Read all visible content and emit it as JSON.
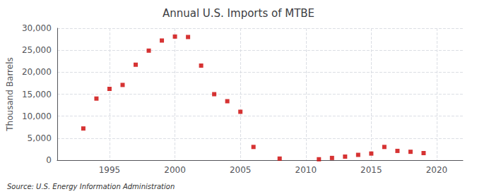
{
  "chart_data": {
    "type": "scatter",
    "title": "Annual U.S. Imports of MTBE",
    "ylabel": "Thousand Barrels",
    "annotation": "Source: U.S. Energy Information Administration",
    "x": [
      1993,
      1994,
      1995,
      1996,
      1997,
      1998,
      1999,
      2000,
      2001,
      2002,
      2003,
      2004,
      2005,
      2006,
      2008,
      2011,
      2012,
      2013,
      2014,
      2015,
      2016,
      2017,
      2018,
      2019
    ],
    "values": [
      7200,
      14000,
      16200,
      17100,
      21700,
      24900,
      27200,
      28100,
      28000,
      21500,
      15000,
      13400,
      11000,
      3000,
      350,
      200,
      500,
      800,
      1200,
      1500,
      3000,
      2100,
      1900,
      1600
    ],
    "color": "#cc0000",
    "marker": "square",
    "xlim": [
      1991,
      2022
    ],
    "ylim": [
      0,
      30000
    ],
    "xticks": [
      1995,
      2000,
      2005,
      2010,
      2015,
      2020
    ],
    "yticks": [
      0,
      {
        "value": 5000,
        "label": "5,000"
      },
      {
        "value": 10000,
        "label": "10,000"
      },
      {
        "value": 15000,
        "label": "15,000"
      },
      {
        "value": 20000,
        "label": "20,000"
      },
      {
        "value": 25000,
        "label": "25,000"
      },
      {
        "value": 30000,
        "label": "30,000"
      }
    ],
    "grid": true
  }
}
